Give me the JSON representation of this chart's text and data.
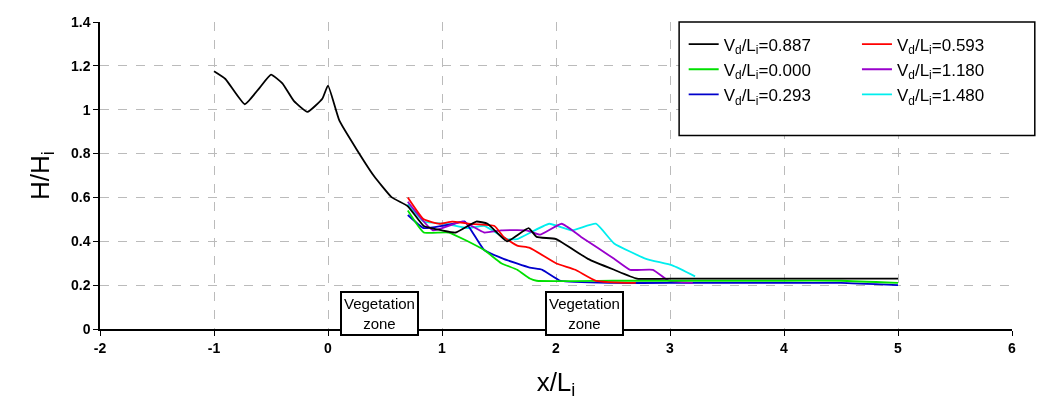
{
  "chart_data": {
    "type": "line",
    "xlabel": "x/L$_{i}$",
    "ylabel": "H/H$_{i}$",
    "xlim": [
      -2,
      6
    ],
    "xticks": [
      -2,
      -1,
      0,
      1,
      2,
      3,
      4,
      5,
      6
    ],
    "ylim": [
      0,
      1.4
    ],
    "yticks": [
      0,
      0.2,
      0.4,
      0.6,
      0.8,
      1,
      1.2,
      1.4
    ],
    "grid": true,
    "legend": "top right",
    "line_style": "solid",
    "marker": "none",
    "annotations": [
      "Vegetation\nzone",
      "Vegetation\nzone"
    ],
    "series": [
      {
        "name": "V$_{d}$/L$_{i}$=0.887",
        "color": "#000000",
        "x": [
          -1,
          -0.9,
          -0.73,
          -0.6,
          -0.5,
          -0.4,
          -0.3,
          -0.18,
          -0.05,
          0,
          0.1,
          0.25,
          0.4,
          0.56,
          0.7,
          0.84,
          1.0,
          1.12,
          1.3,
          1.4,
          1.57,
          1.76,
          1.83,
          2.0,
          2.28,
          2.51,
          2.71,
          3.07,
          3.24,
          3.5,
          4,
          4.5,
          5
        ],
        "values": [
          1.175,
          1.14,
          1.025,
          1.1,
          1.16,
          1.12,
          1.04,
          0.99,
          1.05,
          1.11,
          0.95,
          0.82,
          0.7,
          0.6,
          0.56,
          0.47,
          0.45,
          0.44,
          0.49,
          0.48,
          0.4,
          0.46,
          0.42,
          0.41,
          0.32,
          0.27,
          0.23,
          0.23,
          0.23,
          0.23,
          0.23,
          0.23,
          0.23
        ]
      },
      {
        "name": "V$_{d}$/L$_{i}$=0.593",
        "color": "#ff0000",
        "x": [
          0.7,
          0.84,
          0.98,
          1.09,
          1.23,
          1.46,
          1.54,
          1.66,
          1.77,
          2.0,
          2.17,
          2.35,
          2.7
        ],
        "values": [
          0.6,
          0.5,
          0.48,
          0.49,
          0.48,
          0.47,
          0.42,
          0.38,
          0.37,
          0.3,
          0.27,
          0.22,
          0.21
        ]
      },
      {
        "name": "V$_{d}$/L$_{i}$=0.000",
        "color": "#00e000",
        "x": [
          0.7,
          0.84,
          1.06,
          1.37,
          1.52,
          1.66,
          1.77,
          1.83,
          2.5,
          3,
          3.5,
          4,
          4.5,
          5
        ],
        "values": [
          0.54,
          0.44,
          0.44,
          0.36,
          0.3,
          0.27,
          0.23,
          0.22,
          0.22,
          0.22,
          0.22,
          0.22,
          0.22,
          0.21
        ]
      },
      {
        "name": "V$_{d}$/L$_{i}$=1.180",
        "color": "#9900cc",
        "x": [
          0.7,
          0.92,
          1.18,
          1.37,
          1.52,
          1.74,
          1.86,
          2.05,
          2.22,
          2.51,
          2.65,
          2.85,
          2.99,
          3.2
        ],
        "values": [
          0.58,
          0.45,
          0.49,
          0.44,
          0.45,
          0.45,
          0.43,
          0.48,
          0.42,
          0.32,
          0.27,
          0.27,
          0.22,
          0.21
        ]
      },
      {
        "name": "V$_{d}$/L$_{i}$=0.293",
        "color": "#0000cc",
        "x": [
          0.7,
          0.84,
          1.0,
          1.1,
          1.2,
          1.37,
          1.54,
          1.77,
          1.88,
          2.04,
          2.5,
          3,
          3.5,
          4,
          4.5,
          5
        ],
        "values": [
          0.52,
          0.46,
          0.47,
          0.48,
          0.49,
          0.36,
          0.32,
          0.28,
          0.27,
          0.22,
          0.21,
          0.21,
          0.21,
          0.21,
          0.21,
          0.2
        ]
      },
      {
        "name": "V$_{d}$/L$_{i}$=1.480",
        "color": "#00eeee",
        "x": [
          0.7,
          0.84,
          1.03,
          1.23,
          1.37,
          1.57,
          1.66,
          1.94,
          2.14,
          2.35,
          2.51,
          2.79,
          3.02,
          3.22
        ],
        "values": [
          0.57,
          0.49,
          0.48,
          0.46,
          0.47,
          0.41,
          0.41,
          0.48,
          0.45,
          0.48,
          0.39,
          0.32,
          0.29,
          0.24
        ]
      }
    ]
  }
}
